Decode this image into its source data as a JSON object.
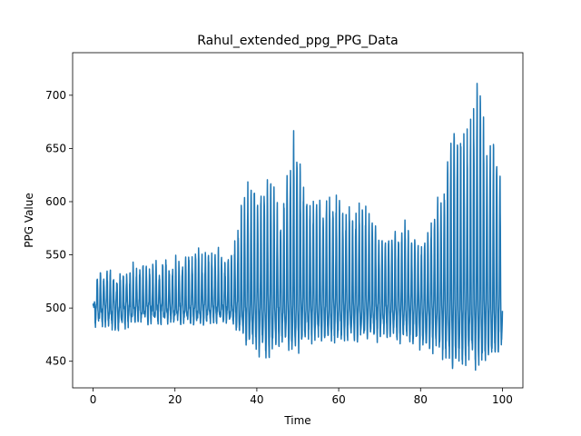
{
  "chart_data": {
    "type": "line",
    "title": "Rahul_extended_ppg_PPG_Data",
    "xlabel": "Time",
    "ylabel": "PPG Value",
    "xlim": [
      -5,
      105
    ],
    "ylim": [
      425,
      740
    ],
    "xticks": [
      0,
      20,
      40,
      60,
      80,
      100
    ],
    "yticks": [
      450,
      500,
      550,
      600,
      650,
      700
    ],
    "grid": false,
    "legend": "none",
    "series": [
      {
        "color": "#1f77b4",
        "x_range": [
          0,
          100
        ],
        "baseline": 500,
        "envelope": [
          {
            "t": 0,
            "hi": 500,
            "lo": 482
          },
          {
            "t": 1,
            "hi": 532,
            "lo": 487
          },
          {
            "t": 3,
            "hi": 537,
            "lo": 484
          },
          {
            "t": 6,
            "hi": 530,
            "lo": 478
          },
          {
            "t": 10,
            "hi": 540,
            "lo": 488
          },
          {
            "t": 15,
            "hi": 542,
            "lo": 488
          },
          {
            "t": 20,
            "hi": 545,
            "lo": 488
          },
          {
            "t": 25,
            "hi": 558,
            "lo": 487
          },
          {
            "t": 30,
            "hi": 553,
            "lo": 488
          },
          {
            "t": 34,
            "hi": 556,
            "lo": 488
          },
          {
            "t": 38,
            "hi": 625,
            "lo": 462
          },
          {
            "t": 41,
            "hi": 612,
            "lo": 457
          },
          {
            "t": 43,
            "hi": 637,
            "lo": 450
          },
          {
            "t": 46,
            "hi": 590,
            "lo": 468
          },
          {
            "t": 49,
            "hi": 672,
            "lo": 452
          },
          {
            "t": 52,
            "hi": 615,
            "lo": 470
          },
          {
            "t": 55,
            "hi": 605,
            "lo": 470
          },
          {
            "t": 59,
            "hi": 612,
            "lo": 468
          },
          {
            "t": 63,
            "hi": 593,
            "lo": 470
          },
          {
            "t": 66,
            "hi": 605,
            "lo": 470
          },
          {
            "t": 70,
            "hi": 575,
            "lo": 472
          },
          {
            "t": 74,
            "hi": 575,
            "lo": 470
          },
          {
            "t": 76,
            "hi": 583,
            "lo": 470
          },
          {
            "t": 80,
            "hi": 560,
            "lo": 462
          },
          {
            "t": 84,
            "hi": 603,
            "lo": 460
          },
          {
            "t": 86,
            "hi": 625,
            "lo": 455
          },
          {
            "t": 88,
            "hi": 690,
            "lo": 443
          },
          {
            "t": 90,
            "hi": 667,
            "lo": 440
          },
          {
            "t": 92,
            "hi": 680,
            "lo": 448
          },
          {
            "t": 94,
            "hi": 732,
            "lo": 443
          },
          {
            "t": 96,
            "hi": 668,
            "lo": 448
          },
          {
            "t": 98,
            "hi": 665,
            "lo": 450
          },
          {
            "t": 100,
            "hi": 625,
            "lo": 457
          }
        ]
      }
    ]
  }
}
